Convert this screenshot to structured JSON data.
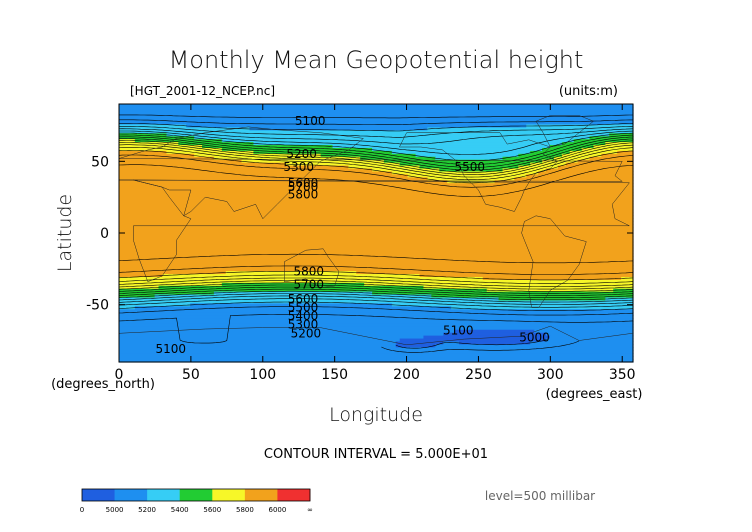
{
  "chart_data": {
    "type": "contour-map",
    "title": "Monthly Mean Geopotential height",
    "source_file": "[HGT_2001-12_NCEP.nc]",
    "units": "(units:m)",
    "xlabel": "Longitude",
    "ylabel": "Latitude",
    "xunit": "(degrees_east)",
    "yunit": "(degrees_north)",
    "xlim": [
      0,
      357.5
    ],
    "ylim": [
      -90,
      90
    ],
    "xticks": [
      0,
      50,
      100,
      150,
      200,
      250,
      300,
      350
    ],
    "yticks": [
      -50,
      0,
      50
    ],
    "contour_interval_text": "CONTOUR INTERVAL = 5.000E+01",
    "level_text": "level=500 millibar",
    "contour_labels": [
      {
        "text": "5100",
        "lon": 133,
        "lat": 78
      },
      {
        "text": "5200",
        "lon": 127,
        "lat": 55
      },
      {
        "text": "5300",
        "lon": 125,
        "lat": 46
      },
      {
        "text": "5500",
        "lon": 244,
        "lat": 46
      },
      {
        "text": "5600",
        "lon": 128,
        "lat": 35
      },
      {
        "text": "5700",
        "lon": 128,
        "lat": 32
      },
      {
        "text": "5800",
        "lon": 128,
        "lat": 27
      },
      {
        "text": "5800",
        "lon": 132,
        "lat": -27
      },
      {
        "text": "5700",
        "lon": 132,
        "lat": -36
      },
      {
        "text": "5600",
        "lon": 128,
        "lat": -46
      },
      {
        "text": "5500",
        "lon": 128,
        "lat": -52
      },
      {
        "text": "5400",
        "lon": 128,
        "lat": -58
      },
      {
        "text": "5300",
        "lon": 128,
        "lat": -64
      },
      {
        "text": "5200",
        "lon": 130,
        "lat": -70
      },
      {
        "text": "5100",
        "lon": 236,
        "lat": -68
      },
      {
        "text": "5000",
        "lon": 289,
        "lat": -73
      },
      {
        "text": "5100",
        "lon": 36,
        "lat": -81
      }
    ],
    "color_scale": {
      "ticks": [
        "0",
        "5000",
        "5200",
        "5400",
        "5600",
        "5800",
        "6000",
        "∞"
      ],
      "bands": [
        {
          "range": "<5000",
          "color": "#1f5fe0"
        },
        {
          "range": "5000-5200",
          "color": "#1e8ff0"
        },
        {
          "range": "5200-5400",
          "color": "#36cdf5"
        },
        {
          "range": "5400-5600",
          "color": "#22cc33"
        },
        {
          "range": "5600-5800",
          "color": "#f7f728"
        },
        {
          "range": "5800-6000",
          "color": "#f2a21c"
        },
        {
          "range": ">6000",
          "color": "#f03030"
        }
      ]
    }
  }
}
